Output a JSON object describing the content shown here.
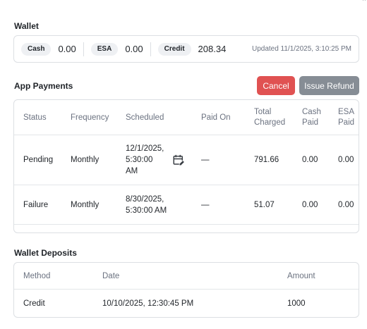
{
  "wallet": {
    "title": "Wallet",
    "balances": [
      {
        "label": "Cash",
        "amount": "0.00"
      },
      {
        "label": "ESA",
        "amount": "0.00"
      },
      {
        "label": "Credit",
        "amount": "208.34"
      }
    ],
    "updated": "Updated 11/1/2025, 3:10:25 PM"
  },
  "payments": {
    "title": "App Payments",
    "cancel_label": "Cancel",
    "refund_label": "Issue Refund",
    "headers": {
      "status": "Status",
      "frequency": "Frequency",
      "scheduled": "Scheduled",
      "paid_on": "Paid On",
      "total_charged_1": "Total",
      "total_charged_2": "Charged",
      "cash_paid_1": "Cash",
      "cash_paid_2": "Paid",
      "esa_paid_1": "ESA",
      "esa_paid_2": "Paid"
    },
    "rows": [
      {
        "status": "Pending",
        "frequency": "Monthly",
        "scheduled_1": "12/1/2025,",
        "scheduled_2": "5:30:00",
        "scheduled_3": "AM",
        "paid_on": "—",
        "total": "791.66",
        "cash": "0.00",
        "esa": "0.00"
      },
      {
        "status": "Failure",
        "frequency": "Monthly",
        "scheduled_1": "8/30/2025,",
        "scheduled_2": "5:30:00 AM",
        "paid_on": "—",
        "total": "51.07",
        "cash": "0.00",
        "esa": "0.00"
      }
    ]
  },
  "deposits": {
    "title": "Wallet Deposits",
    "headers": {
      "method": "Method",
      "date": "Date",
      "amount": "Amount"
    },
    "rows": [
      {
        "method": "Credit",
        "date": "10/10/2025, 12:30:45 PM",
        "amount": "1000"
      }
    ]
  },
  "icons": {
    "schedule": "calendar-edit-icon"
  }
}
